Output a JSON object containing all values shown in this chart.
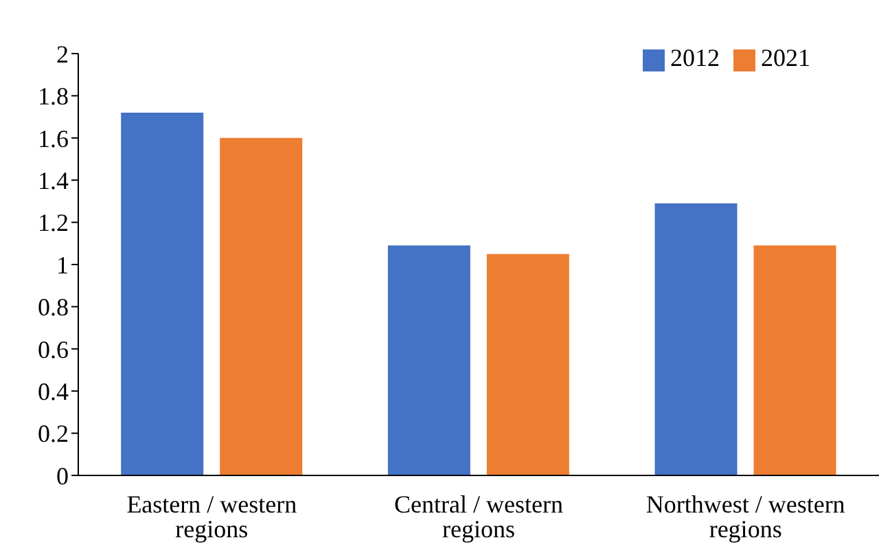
{
  "chart_data": {
    "type": "bar",
    "categories": [
      "Eastern / western regions",
      "Central / western regions",
      "Northwest / western regions"
    ],
    "series": [
      {
        "name": "2012",
        "color": "#4472c4",
        "values": [
          1.72,
          1.09,
          1.29
        ]
      },
      {
        "name": "2021",
        "color": "#ed7d31",
        "values": [
          1.6,
          1.05,
          1.09
        ]
      }
    ],
    "ylim": [
      0,
      2
    ],
    "yticks": [
      0,
      0.2,
      0.4,
      0.6,
      0.8,
      1,
      1.2,
      1.4,
      1.6,
      1.8,
      2
    ],
    "grid": false,
    "legend": "top right"
  }
}
